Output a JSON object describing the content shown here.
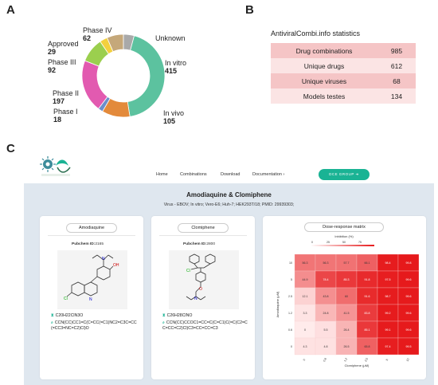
{
  "panels": {
    "a": "A",
    "b": "B",
    "c": "C"
  },
  "donut": {
    "labels": [
      {
        "name": "Unknown",
        "value": ""
      },
      {
        "name": "In vitro",
        "value": "415"
      },
      {
        "name": "In vivo",
        "value": "105"
      },
      {
        "name": "Phase I",
        "value": "18"
      },
      {
        "name": "Phase II",
        "value": "197"
      },
      {
        "name": "Phase III",
        "value": "92"
      },
      {
        "name": "Approved",
        "value": "29"
      },
      {
        "name": "Phase IV",
        "value": "62"
      }
    ]
  },
  "chart_data": [
    {
      "type": "pie",
      "categories": [
        "In vitro",
        "In vivo",
        "Phase I",
        "Phase II",
        "Phase III",
        "Approved",
        "Phase IV",
        "Unknown"
      ],
      "values": [
        415,
        105,
        18,
        197,
        92,
        29,
        62,
        40
      ],
      "colors": [
        "#5cc29f",
        "#e38a3b",
        "#6b8ecb",
        "#e25ab0",
        "#9bcf4e",
        "#f3d03e",
        "#c5a87a",
        "#a9a9a9"
      ]
    },
    {
      "type": "heatmap",
      "title": "Dose-response matrix",
      "legend_title": "Inhibition (%)",
      "legend_ticks": [
        "0",
        "25",
        "50",
        "75"
      ],
      "xlabel": "Clomiphene (μM)",
      "ylabel": "Amodiaquine (μM)",
      "x_ticks": [
        "0",
        "0.6",
        "1.2",
        "2.5",
        "5",
        "10"
      ],
      "y_ticks": [
        "10",
        "5",
        "2.5",
        "1.2",
        "0.6",
        "0"
      ],
      "values": [
        [
          56.3,
          56.3,
          57.7,
          66.1,
          98.4,
          99.8
        ],
        [
          44.9,
          78.4,
          85.3,
          91.8,
          97.5,
          99.6
        ],
        [
          12.1,
          43.8,
          60,
          91.6,
          98.7,
          99.6
        ],
        [
          3.3,
          24.8,
          41.5,
          83.8,
          99.2,
          99.6
        ],
        [
          0,
          5.5,
          26.4,
          85.1,
          99.1,
          99.6
        ],
        [
          4.3,
          4.8,
          26.5,
          65.8,
          97.4,
          99.5
        ]
      ]
    }
  ],
  "stats": {
    "title": "AntiviralCombi.info statistics",
    "rows": [
      {
        "label": "Drug combinations",
        "value": "985"
      },
      {
        "label": "Unique drugs",
        "value": "612"
      },
      {
        "label": "Unique viruses",
        "value": "68"
      },
      {
        "label": "Models testes",
        "value": "134"
      }
    ]
  },
  "nav": {
    "items": [
      "Home",
      "Combinations",
      "Download",
      "Documentation ›"
    ],
    "button": "DCE GROUP ➜"
  },
  "combo": {
    "title": "Amodiaquine & Clomiphene",
    "subtitle": "Virus - EBOV; In vitro; Vero-E6; Huh-7; HEK293T/18; PMID: 29939303;"
  },
  "drugs": [
    {
      "name": "Amodiaquine",
      "pubchem_label": "Pubchem ID:",
      "pubchem_id": "2165",
      "formula": "C20H22ClN3O",
      "smiles": "CCN(CC)CC1=C(C=CC(=C1)NC2=C3C=CC(=CC3=NC=C2)Cl)O"
    },
    {
      "name": "Clomiphene",
      "pubchem_label": "Pubchem ID:",
      "pubchem_id": "2800",
      "formula": "C26H28ClNO",
      "smiles": "CCN(CC)CCOC1=CC=C(C=C1)C(=C(C2=CC=CC=C2)Cl)C3=CC=CC=C3"
    }
  ]
}
